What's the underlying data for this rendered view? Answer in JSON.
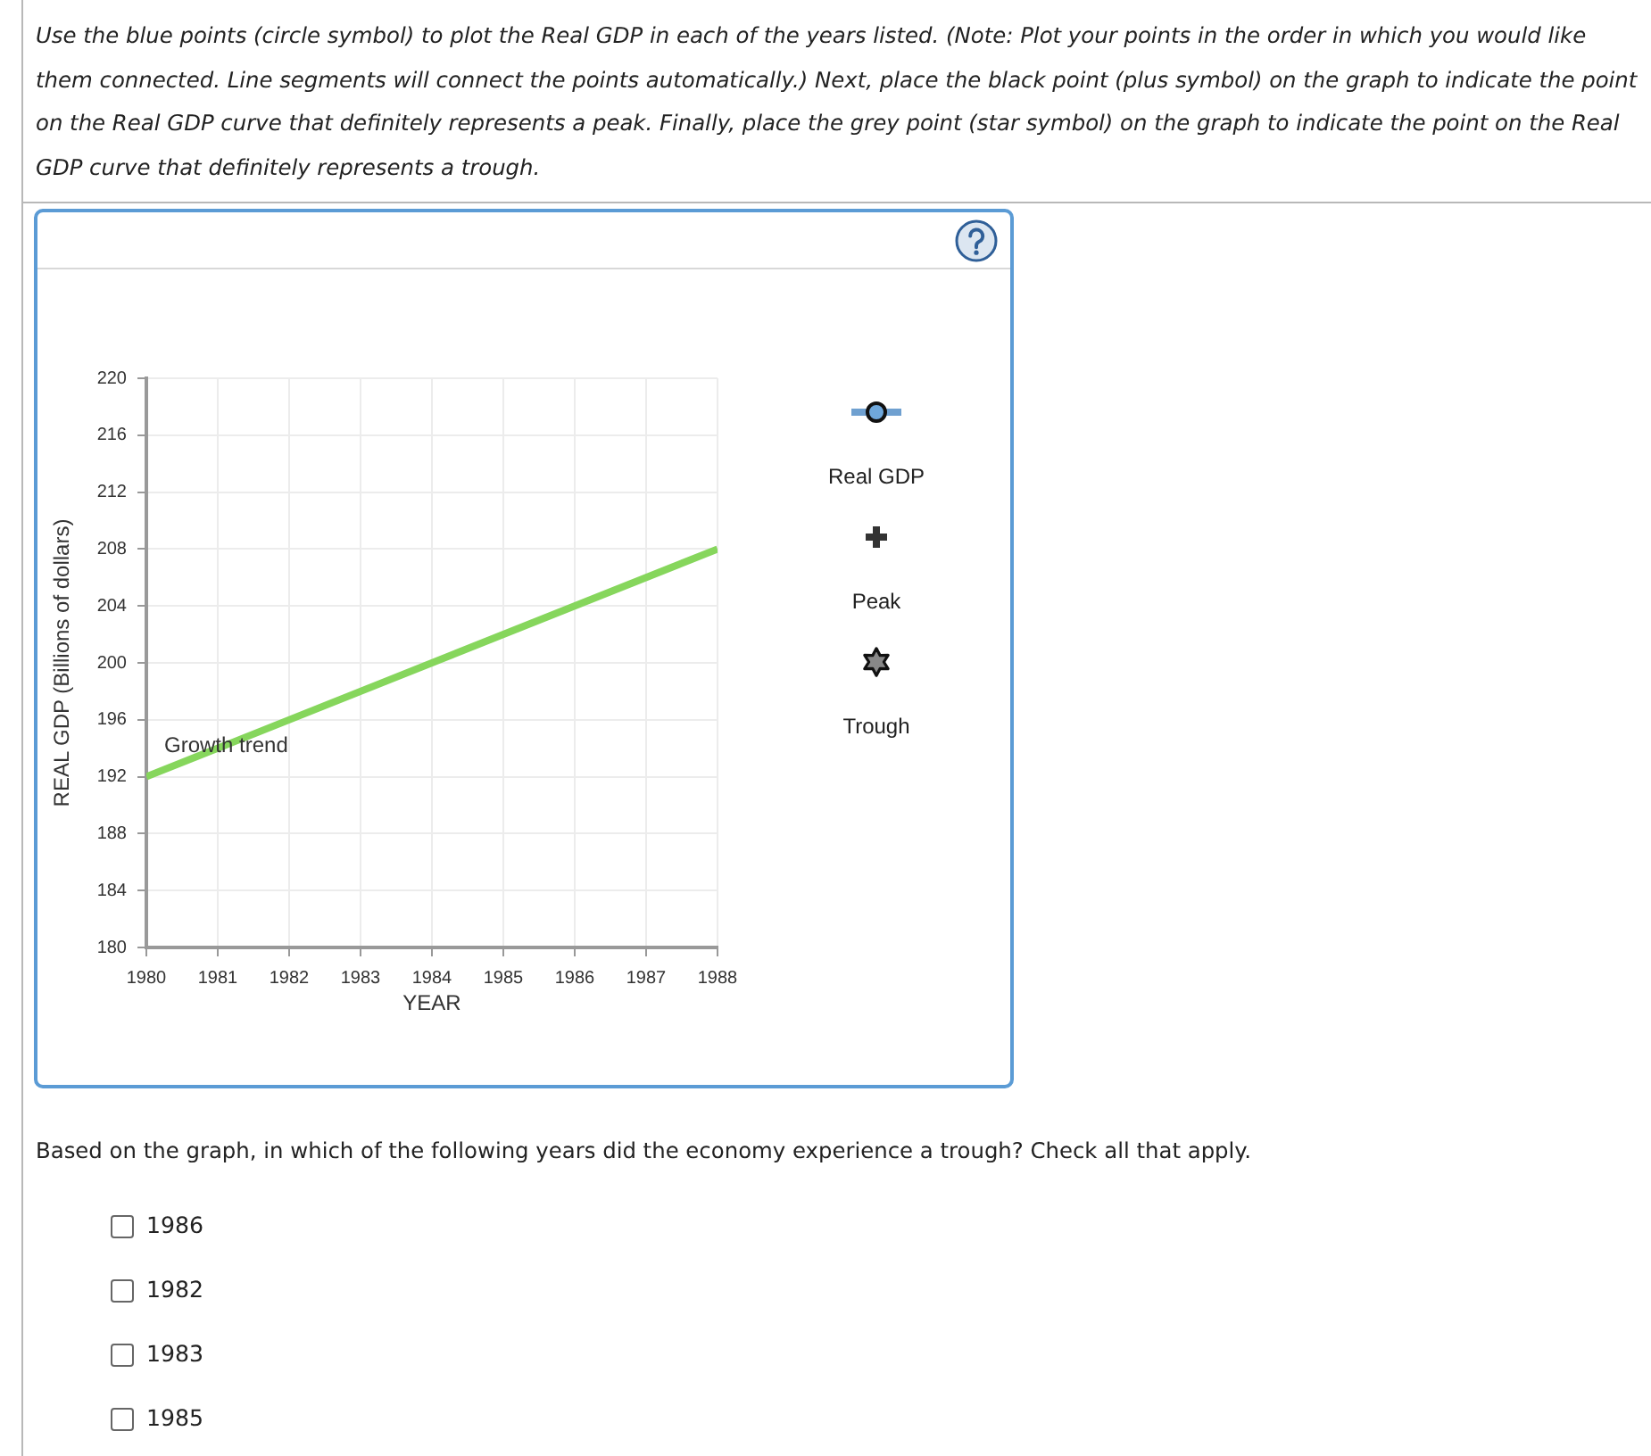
{
  "chart_data": {
    "type": "line",
    "x": [
      1980,
      1988
    ],
    "series": [
      {
        "name": "Growth trend",
        "color": "#86d65c",
        "values": [
          192,
          208
        ]
      }
    ],
    "xlabel": "YEAR",
    "ylabel": "REAL GDP (Billions of dollars)",
    "xlim": [
      1980,
      1988
    ],
    "xticks": [
      1980,
      1981,
      1982,
      1983,
      1984,
      1985,
      1986,
      1987,
      1988
    ],
    "ylim": [
      180,
      220
    ],
    "yticks": [
      180,
      184,
      188,
      192,
      196,
      200,
      204,
      208,
      212,
      216,
      220
    ],
    "grid": true,
    "marker": "none",
    "annotations": [
      "Use the blue points (circle symbol) to plot the Real GDP in each of the years listed. (Note: Plot your points in the order in which you would like them connected. Line segments will connect the points automatically.) Next, place the black point (plus symbol) on the graph to indicate the point on the Real GDP curve that definitely represents a peak. Finally, place the grey point (star symbol) on the graph to indicate the point on the Real GDP curve that definitely represents a trough.",
      "Real GDP",
      "Peak",
      "Trough",
      "Based on the graph, in which of the following years did the economy experience a trough? Check all that apply.",
      "1986",
      "1982",
      "1983",
      "1985"
    ]
  }
}
